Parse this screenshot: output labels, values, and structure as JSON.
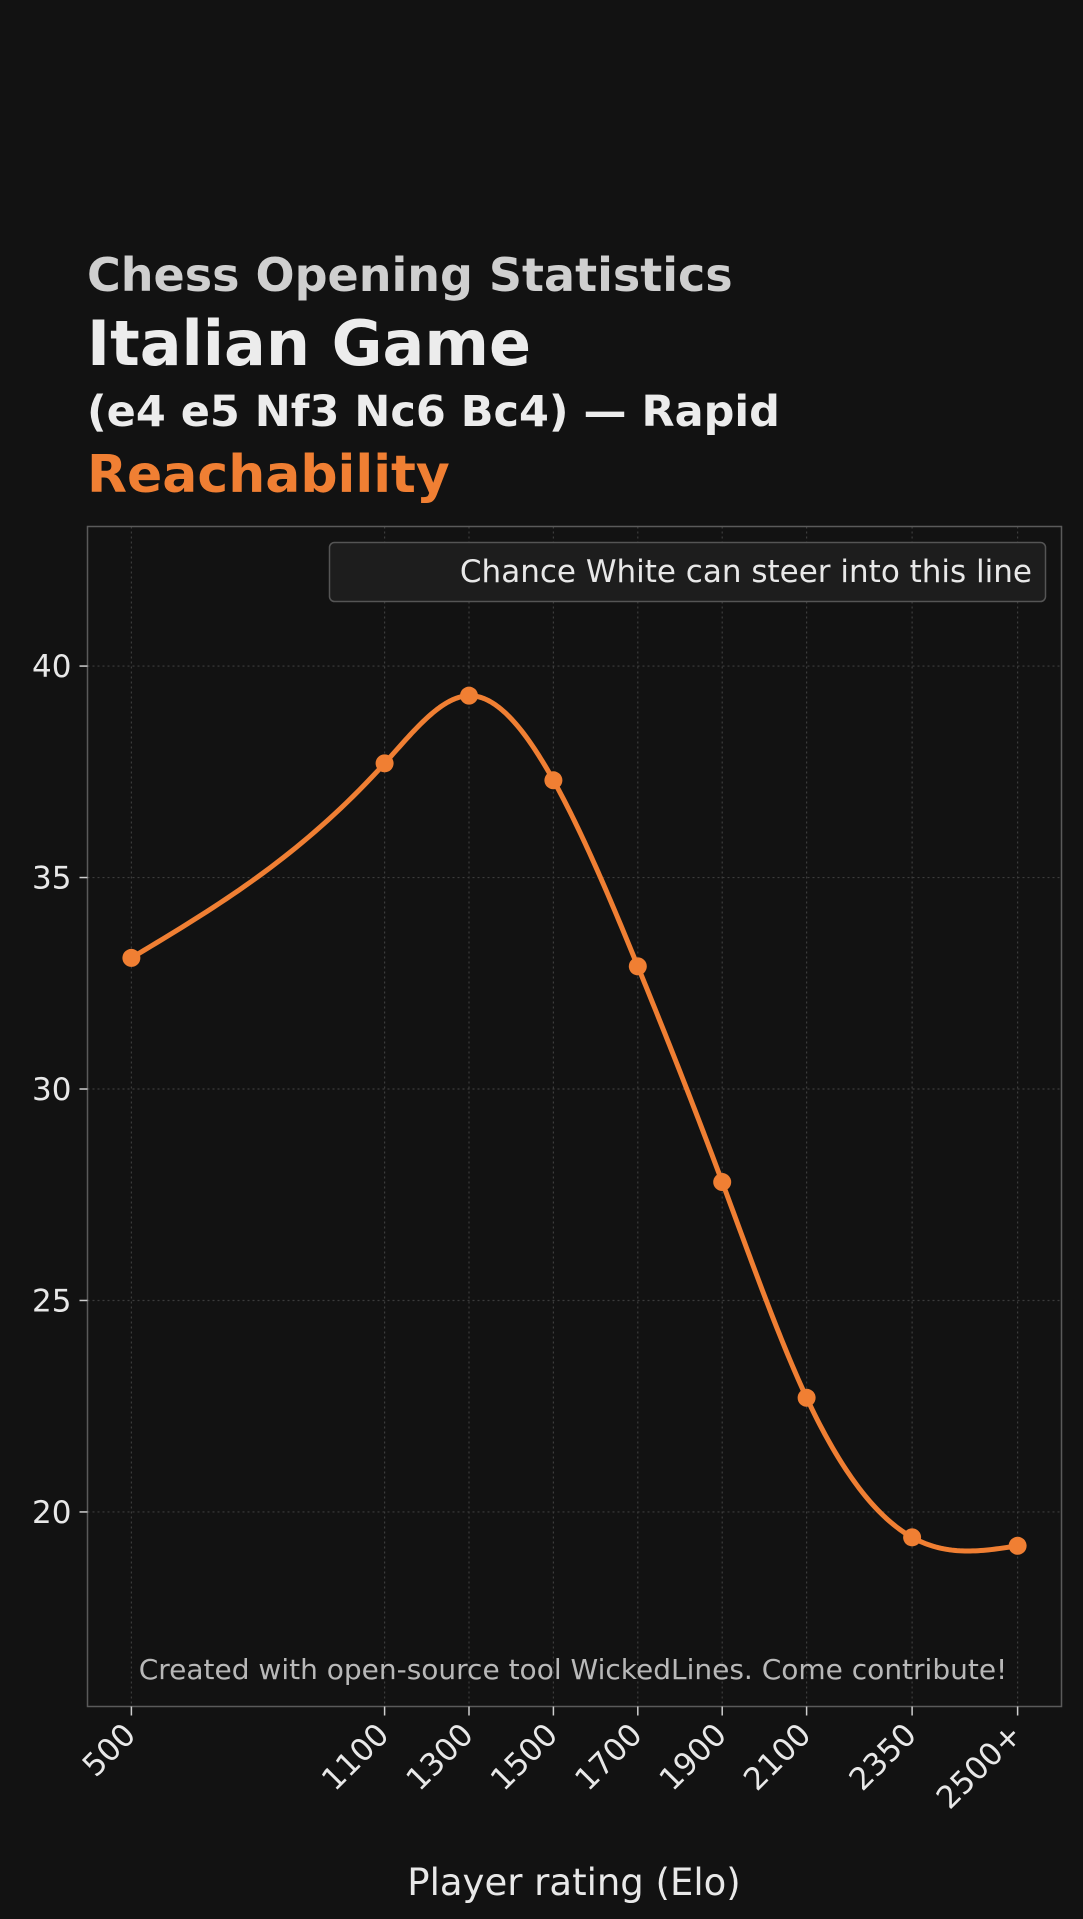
{
  "header": {
    "kicker": "Chess Opening Statistics",
    "opening": "Italian Game",
    "line": "(e4 e5 Nf3 Nc6 Bc4) — Rapid",
    "metric": "Reachability"
  },
  "chart_data": {
    "type": "line",
    "categories": [
      "500",
      "1100",
      "1300",
      "1500",
      "1700",
      "1900",
      "2100",
      "2350",
      "2500+"
    ],
    "x": [
      500,
      1100,
      1300,
      1500,
      1700,
      1900,
      2100,
      2350,
      2600
    ],
    "series": [
      {
        "name": "Chance White can steer into this line",
        "values": [
          33.1,
          37.7,
          39.3,
          37.3,
          32.9,
          27.8,
          22.7,
          19.4,
          19.2
        ],
        "color": "#f07f33"
      }
    ],
    "xlabel": "Player rating (Elo)",
    "ylabel": "",
    "yticks": [
      20,
      25,
      30,
      35,
      40
    ],
    "ylim": [
      15.4,
      43.3
    ],
    "xlim": [
      396,
      2704
    ],
    "grid": true,
    "legend_position": "top-right",
    "annotation": "Created with open-source tool WickedLines. Come contribute!",
    "smooth": true,
    "markers": true
  }
}
